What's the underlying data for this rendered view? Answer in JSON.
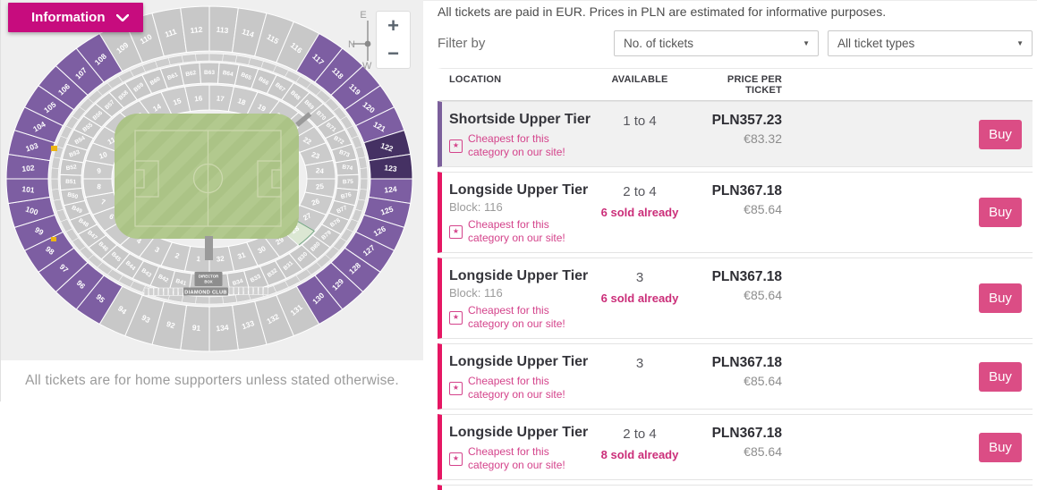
{
  "colors": {
    "info_button": "#c70c7e",
    "accent_purple": "#7b5f9b",
    "accent_pink": "#e61663",
    "buy_button": "#db4d85",
    "badge_pink": "#d4438b",
    "sold_pink": "#cb2e79",
    "map_bg": "#efefef",
    "section_gray": "#c8c8c8",
    "section_purple": "#7d5ea2",
    "section_dark_purple": "#453163",
    "pitch_green": "#abc386",
    "pitch_stripe": "#b2c98e",
    "pitch_line": "#ccd8ad",
    "structure_gray": "#8d8d8d",
    "marker_yellow": "#edb512",
    "away_fill": "#dbe7d3",
    "away_stroke": "#74a584"
  },
  "left_panel": {
    "info_button": {
      "label": "Information"
    },
    "zoom_controls": {
      "zoom_in": "+",
      "zoom_out": "−"
    },
    "compass": {
      "top": "E",
      "left": "N",
      "bottom": "W"
    },
    "footer_note": "All tickets are for home supporters unless stated otherwise.",
    "map": {
      "outer_ring": {
        "first": 91,
        "last": 134,
        "purple_ranges": [
          [
            95,
            108
          ],
          [
            117,
            130
          ]
        ],
        "dark_sections": [
          122,
          123
        ]
      },
      "lower_ring": {
        "first": 1,
        "last": 32,
        "away_sections": [
          28
        ]
      },
      "club_ring": {
        "labels": [
          "B41",
          "B42",
          "B43",
          "B44",
          "B45",
          "B46",
          "B47",
          "B48",
          "B49",
          "B50",
          "B51",
          "B52",
          "B53",
          "B54",
          "B55",
          "B56",
          "B57",
          "B58",
          "B59",
          "B60",
          "B61",
          "B62",
          "B63",
          "B64",
          "B65",
          "B66",
          "B67",
          "B68",
          "B69",
          "B70",
          "B71",
          "B72",
          "B73",
          "B74",
          "B75",
          "B76",
          "B77",
          "B78",
          "B79",
          "B80",
          "B30",
          "B31",
          "B32",
          "B33",
          "B34"
        ]
      },
      "director_box": "DIRECTOR BOX",
      "diamond_club": "DIAMOND CLUB"
    }
  },
  "right_panel": {
    "currency_note": "All tickets are paid in EUR. Prices in PLN are estimated for informative purposes.",
    "filter": {
      "label": "Filter by",
      "tickets_dropdown": "No. of tickets",
      "types_dropdown": "All ticket types",
      "caret": "▼"
    },
    "table": {
      "headers": {
        "location": "LOCATION",
        "available": "AVAILABLE",
        "price": "PRICE PER TICKET"
      },
      "badge_text": "Cheapest for this category on our site!",
      "badge_star": "★",
      "buy_label": "Buy",
      "rows": [
        {
          "location": "Shortside Upper Tier",
          "block": "",
          "badge": true,
          "available": "1 to 4",
          "sold": "",
          "pln": "PLN357.23",
          "eur": "€83.32",
          "accent": "purple",
          "highlight": true
        },
        {
          "location": "Longside Upper Tier",
          "block": "Block: 116",
          "badge": true,
          "available": "2 to 4",
          "sold": "6 sold already",
          "pln": "PLN367.18",
          "eur": "€85.64",
          "accent": "pink"
        },
        {
          "location": "Longside Upper Tier",
          "block": "Block: 116",
          "badge": true,
          "available": "3",
          "sold": "6 sold already",
          "pln": "PLN367.18",
          "eur": "€85.64",
          "accent": "pink"
        },
        {
          "location": "Longside Upper Tier",
          "block": "",
          "badge": true,
          "available": "3",
          "sold": "",
          "pln": "PLN367.18",
          "eur": "€85.64",
          "accent": "pink"
        },
        {
          "location": "Longside Upper Tier",
          "block": "",
          "badge": true,
          "available": "2 to 4",
          "sold": "8 sold already",
          "pln": "PLN367.18",
          "eur": "€85.64",
          "accent": "pink"
        },
        {
          "partial": true,
          "accent": "pink"
        }
      ]
    }
  }
}
